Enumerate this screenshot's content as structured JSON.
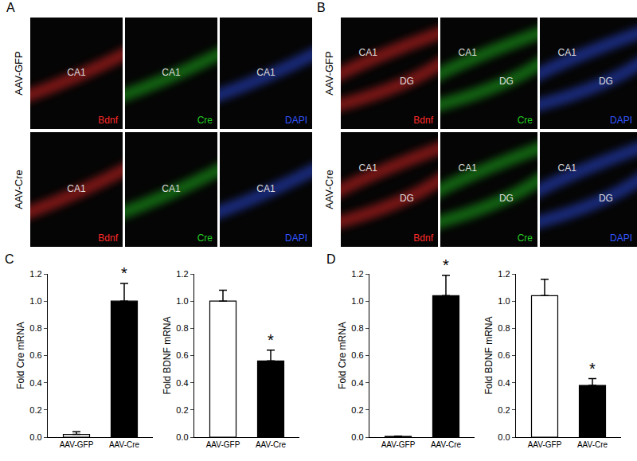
{
  "figure_panels": [
    {
      "label": "A",
      "rows": [
        "AAV-GFP",
        "AAV-Cre"
      ],
      "channels": [
        {
          "name": "Bdnf",
          "color": "#ff2a2a"
        },
        {
          "name": "Cre",
          "color": "#22cc22"
        },
        {
          "name": "DAPI",
          "color": "#3355ff"
        }
      ],
      "regions": [
        "CA1"
      ]
    },
    {
      "label": "B",
      "rows": [
        "AAV-GFP",
        "AAV-Cre"
      ],
      "channels": [
        {
          "name": "Bdnf",
          "color": "#ff2a2a"
        },
        {
          "name": "Cre",
          "color": "#22cc22"
        },
        {
          "name": "DAPI",
          "color": "#3355ff"
        }
      ],
      "regions": [
        "CA1",
        "DG"
      ]
    }
  ],
  "chart_data": [
    {
      "type": "bar",
      "panel": "C",
      "categories": [
        "AAV-GFP",
        "AAV-Cre"
      ],
      "values": [
        0.02,
        1.0
      ],
      "errors": [
        0.02,
        0.13
      ],
      "colors": [
        "#ffffff",
        "#000000"
      ],
      "y_label": "Fold Cre mRNA",
      "ylim": [
        0,
        1.2
      ],
      "yticks": [
        {
          "value": 0,
          "label": "0.0"
        },
        0.2,
        0.4,
        0.6,
        0.8,
        {
          "value": 1,
          "label": "1.0"
        },
        1.2
      ],
      "annotations": [
        {
          "category": "AAV-Cre",
          "text": "*"
        }
      ]
    },
    {
      "type": "bar",
      "categories": [
        "AAV-GFP",
        "AAV-Cre"
      ],
      "values": [
        1.0,
        0.56
      ],
      "errors": [
        0.08,
        0.08
      ],
      "colors": [
        "#ffffff",
        "#000000"
      ],
      "y_label": "Fold BDNF mRNA",
      "ylim": [
        0,
        1.2
      ],
      "yticks": [
        {
          "value": 0,
          "label": "0.0"
        },
        0.2,
        0.4,
        0.6,
        0.8,
        {
          "value": 1,
          "label": "1.0"
        },
        1.2
      ],
      "annotations": [
        {
          "category": "AAV-Cre",
          "text": "*"
        }
      ]
    },
    {
      "type": "bar",
      "panel": "D",
      "categories": [
        "AAV-GFP",
        "AAV-Cre"
      ],
      "values": [
        0.005,
        1.04
      ],
      "errors": [
        0.003,
        0.15
      ],
      "colors": [
        "#ffffff",
        "#000000"
      ],
      "y_label": "Fold Cre mRNA",
      "ylim": [
        0,
        1.2
      ],
      "yticks": [
        {
          "value": 0,
          "label": "0.0"
        },
        0.2,
        0.4,
        0.6,
        0.8,
        {
          "value": 1,
          "label": "1.0"
        },
        1.2
      ],
      "annotations": [
        {
          "category": "AAV-Cre",
          "text": "*"
        }
      ]
    },
    {
      "type": "bar",
      "categories": [
        "AAV-GFP",
        "AAV-Cre"
      ],
      "values": [
        1.04,
        0.38
      ],
      "errors": [
        0.12,
        0.05
      ],
      "colors": [
        "#ffffff",
        "#000000"
      ],
      "y_label": "Fold BDNF mRNA",
      "ylim": [
        0,
        1.2
      ],
      "yticks": [
        {
          "value": 0,
          "label": "0.0"
        },
        0.2,
        0.4,
        0.6,
        0.8,
        {
          "value": 1,
          "label": "1.0"
        },
        1.2
      ],
      "annotations": [
        {
          "category": "AAV-Cre",
          "text": "*"
        }
      ]
    }
  ]
}
